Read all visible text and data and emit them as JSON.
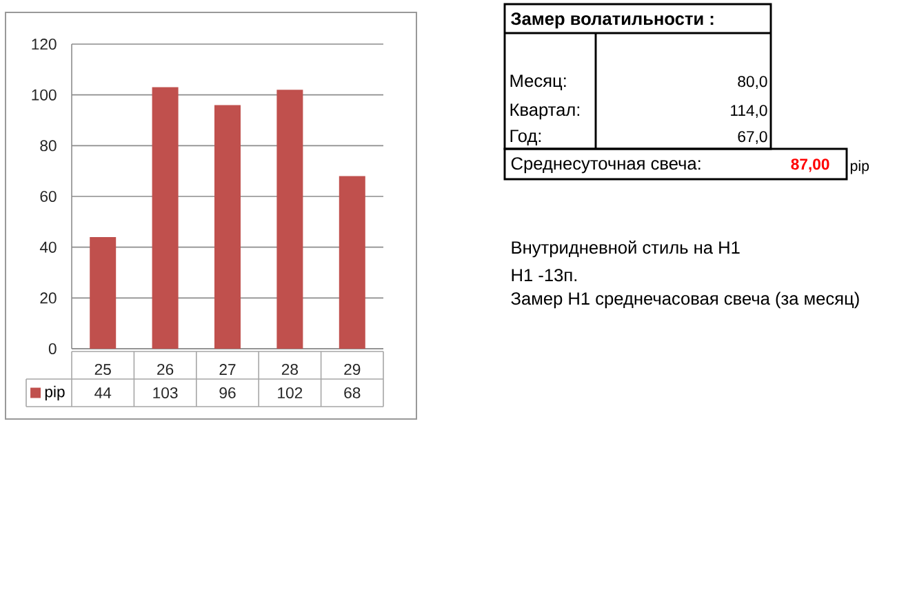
{
  "chart_data": {
    "type": "bar",
    "categories": [
      "25",
      "26",
      "27",
      "28",
      "29"
    ],
    "series": [
      {
        "name": "pip",
        "color": "#c0504d",
        "values": [
          44,
          103,
          96,
          102,
          68
        ]
      }
    ],
    "ylim": [
      0,
      120
    ],
    "yticks": [
      0,
      20,
      40,
      60,
      80,
      100,
      120
    ],
    "grid": "y",
    "legend": "bottom",
    "data_labels": true,
    "annotations": [
      "Замер волатильности :",
      "Месяц:",
      "80,0",
      "Квартал:",
      "114,0",
      "Год:",
      "67,0",
      "Среднесуточная свеча:",
      "87,00",
      "pip",
      "Внутридневной стиль на H1",
      "H1 -13п.",
      "Замер H1 среднечасовая свеча (за месяц)"
    ]
  }
}
